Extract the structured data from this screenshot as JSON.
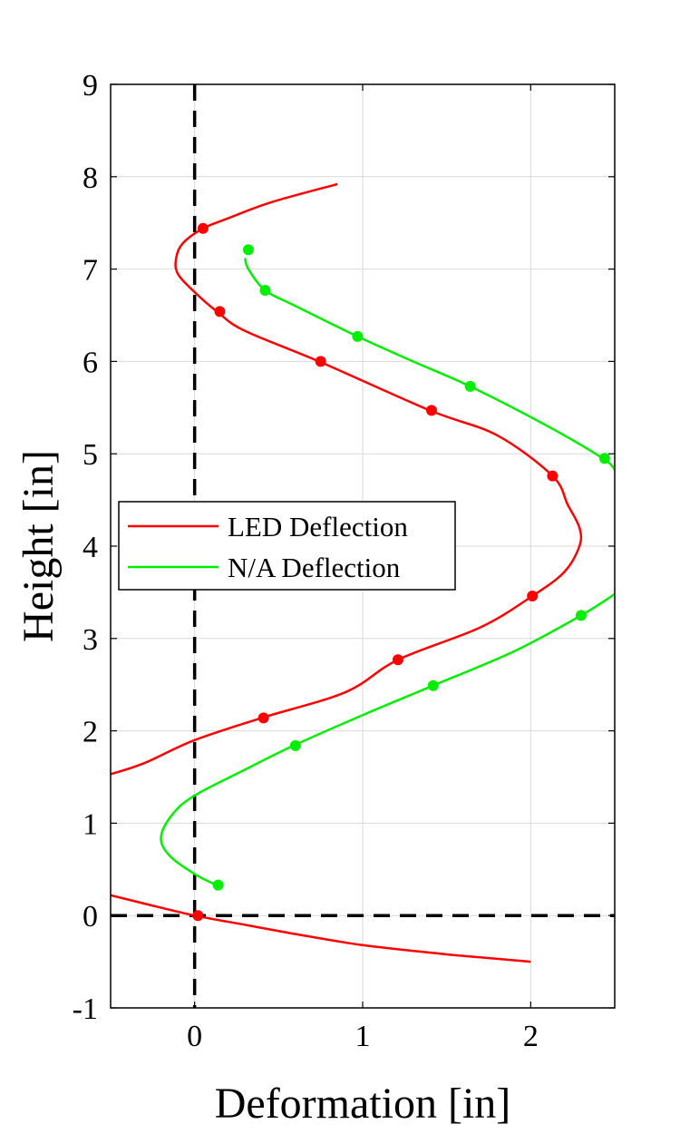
{
  "chart_data": {
    "type": "line",
    "xlabel": "Deformation [in]",
    "ylabel": "Height [in]",
    "xlim": [
      -0.5,
      2.5
    ],
    "ylim": [
      -1,
      9
    ],
    "xticks": [
      0,
      1,
      2
    ],
    "yticks": [
      -1,
      0,
      1,
      2,
      3,
      4,
      5,
      6,
      7,
      8,
      9
    ],
    "grid": true,
    "legend_position": "center-left",
    "reference_lines": [
      {
        "orientation": "vertical",
        "value": 0,
        "style": "dashed",
        "color": "#000000"
      },
      {
        "orientation": "horizontal",
        "value": 0,
        "style": "dashed",
        "color": "#000000"
      }
    ],
    "series": [
      {
        "name": "LED Deflection",
        "color": "#ff0000",
        "curve": [
          [
            2.0,
            -0.5
          ],
          [
            1.5,
            -0.42
          ],
          [
            1.0,
            -0.32
          ],
          [
            0.6,
            -0.2
          ],
          [
            0.3,
            -0.1
          ],
          [
            0.0,
            0.0
          ],
          [
            -0.3,
            0.13
          ],
          [
            -0.5,
            0.22
          ]
        ],
        "curve2": [
          [
            -0.5,
            1.53
          ],
          [
            -0.3,
            1.65
          ],
          [
            0.0,
            1.9
          ],
          [
            0.4,
            2.14
          ],
          [
            0.9,
            2.42
          ],
          [
            1.21,
            2.77
          ],
          [
            1.7,
            3.12
          ],
          [
            2.01,
            3.46
          ],
          [
            2.2,
            3.72
          ],
          [
            2.29,
            4.0
          ],
          [
            2.29,
            4.2
          ],
          [
            2.22,
            4.45
          ],
          [
            2.13,
            4.76
          ],
          [
            1.8,
            5.2
          ],
          [
            1.4,
            5.47
          ],
          [
            0.74,
            6.0
          ],
          [
            0.3,
            6.33
          ],
          [
            0.14,
            6.53
          ],
          [
            0.0,
            6.75
          ],
          [
            -0.1,
            6.95
          ],
          [
            -0.11,
            7.12
          ],
          [
            -0.07,
            7.28
          ],
          [
            0.05,
            7.44
          ],
          [
            0.2,
            7.55
          ],
          [
            0.45,
            7.72
          ],
          [
            0.85,
            7.92
          ]
        ],
        "markers": [
          [
            0.02,
            0.0
          ],
          [
            0.41,
            2.14
          ],
          [
            1.21,
            2.77
          ],
          [
            2.01,
            3.46
          ],
          [
            2.13,
            4.76
          ],
          [
            1.41,
            5.47
          ],
          [
            0.75,
            6.0
          ],
          [
            0.15,
            6.54
          ],
          [
            0.05,
            7.44
          ]
        ]
      },
      {
        "name": "N/A Deflection",
        "color": "#00ee00",
        "curve": [
          [
            0.13,
            0.33
          ],
          [
            0.0,
            0.45
          ],
          [
            -0.15,
            0.65
          ],
          [
            -0.2,
            0.85
          ],
          [
            -0.13,
            1.1
          ],
          [
            0.0,
            1.3
          ],
          [
            0.3,
            1.58
          ],
          [
            0.6,
            1.85
          ],
          [
            1.0,
            2.17
          ],
          [
            1.42,
            2.49
          ],
          [
            1.9,
            2.86
          ],
          [
            2.3,
            3.25
          ],
          [
            2.5,
            3.48
          ]
        ],
        "curve2": [
          [
            2.5,
            4.83
          ],
          [
            2.43,
            4.95
          ],
          [
            2.1,
            5.3
          ],
          [
            1.64,
            5.73
          ],
          [
            1.3,
            6.0
          ],
          [
            0.97,
            6.27
          ],
          [
            0.6,
            6.6
          ],
          [
            0.42,
            6.77
          ],
          [
            0.32,
            7.0
          ],
          [
            0.3,
            7.12
          ]
        ],
        "markers": [
          [
            0.14,
            0.33
          ],
          [
            0.6,
            1.84
          ],
          [
            1.42,
            2.49
          ],
          [
            2.3,
            3.25
          ],
          [
            2.44,
            4.95
          ],
          [
            1.64,
            5.73
          ],
          [
            0.97,
            6.27
          ],
          [
            0.42,
            6.77
          ],
          [
            0.32,
            7.21
          ]
        ]
      }
    ]
  }
}
